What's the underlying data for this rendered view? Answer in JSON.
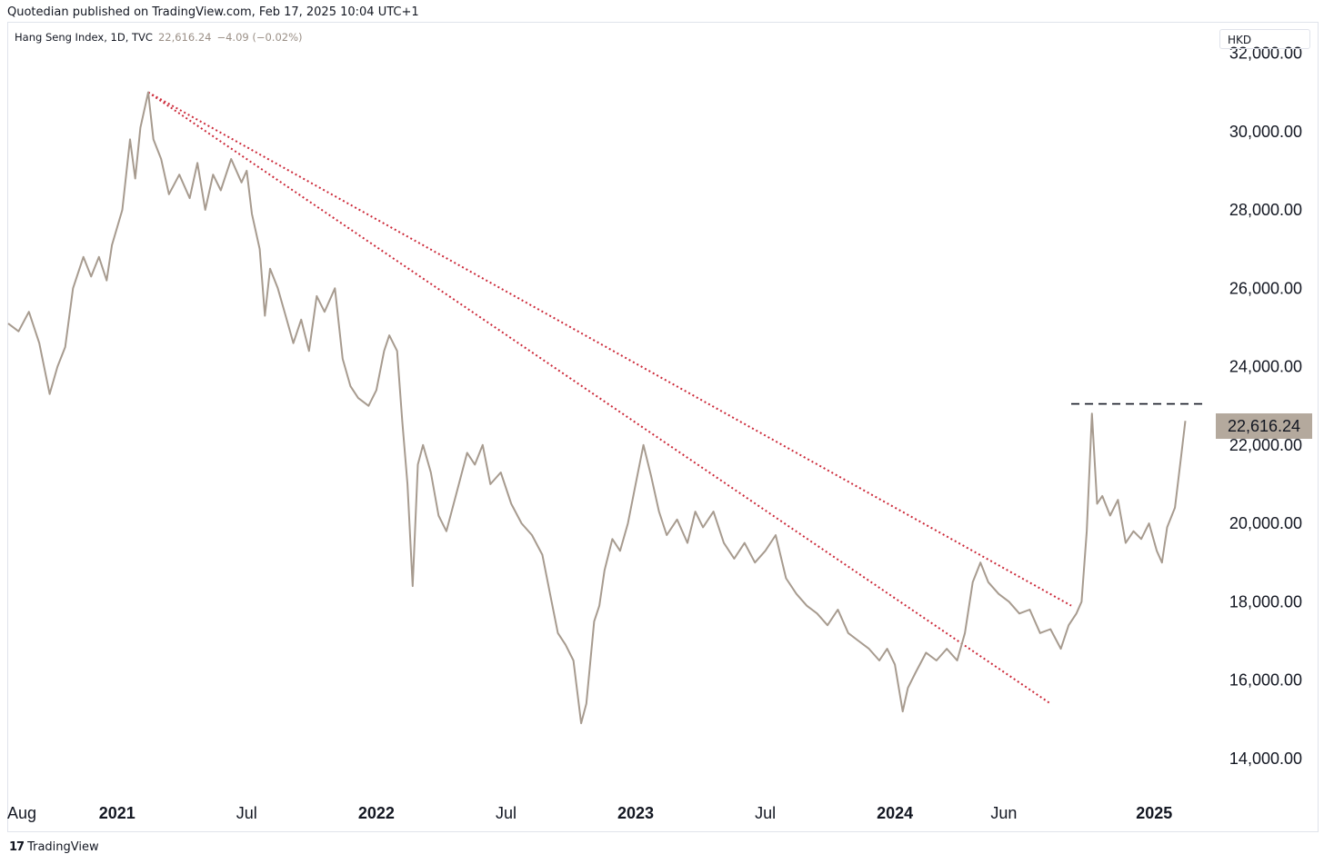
{
  "header": {
    "publisher_line": "Quotedian published on TradingView.com, Feb 17, 2025 10:04 UTC+1"
  },
  "legend": {
    "symbol": "Hang Seng Index, 1D, TVC",
    "last": "22,616.24",
    "change": "−4.09 (−0.02%)"
  },
  "currency": "HKD",
  "price_label": "22,616.24",
  "footer": {
    "brand": "TradingView",
    "logo_glyph": "17"
  },
  "colors": {
    "series": "#a79b8f",
    "trendline": "#cc2a3a",
    "resistance": "#131722",
    "price_label_bg": "#b4a99d"
  },
  "chart_data": {
    "type": "line",
    "title": "Hang Seng Index, 1D, TVC",
    "ylim": [
      13000,
      32800
    ],
    "y_ticks": [
      {
        "value": 32000,
        "label": "32,000.00"
      },
      {
        "value": 30000,
        "label": "30,000.00"
      },
      {
        "value": 28000,
        "label": "28,000.00"
      },
      {
        "value": 26000,
        "label": "26,000.00"
      },
      {
        "value": 24000,
        "label": "24,000.00"
      },
      {
        "value": 22000,
        "label": "22,000.00"
      },
      {
        "value": 20000,
        "label": "20,000.00"
      },
      {
        "value": 18000,
        "label": "18,000.00"
      },
      {
        "value": 16000,
        "label": "16,000.00"
      },
      {
        "value": 14000,
        "label": "14,000.00"
      }
    ],
    "xlim": [
      2020.58,
      2025.22
    ],
    "x_ticks": [
      {
        "t": 2020.58,
        "label": "Aug",
        "bold": false
      },
      {
        "t": 2021.0,
        "label": "2021",
        "bold": true
      },
      {
        "t": 2021.5,
        "label": "Jul",
        "bold": false
      },
      {
        "t": 2022.0,
        "label": "2022",
        "bold": true
      },
      {
        "t": 2022.5,
        "label": "Jul",
        "bold": false
      },
      {
        "t": 2023.0,
        "label": "2023",
        "bold": true
      },
      {
        "t": 2023.5,
        "label": "Jul",
        "bold": false
      },
      {
        "t": 2024.0,
        "label": "2024",
        "bold": true
      },
      {
        "t": 2024.42,
        "label": "Jun",
        "bold": false
      },
      {
        "t": 2025.0,
        "label": "2025",
        "bold": true
      }
    ],
    "series": [
      {
        "name": "Hang Seng Index",
        "points": [
          [
            2020.58,
            25100
          ],
          [
            2020.62,
            24900
          ],
          [
            2020.66,
            25400
          ],
          [
            2020.7,
            24600
          ],
          [
            2020.74,
            23300
          ],
          [
            2020.77,
            24000
          ],
          [
            2020.8,
            24500
          ],
          [
            2020.83,
            26000
          ],
          [
            2020.87,
            26800
          ],
          [
            2020.9,
            26300
          ],
          [
            2020.93,
            26800
          ],
          [
            2020.96,
            26200
          ],
          [
            2020.98,
            27100
          ],
          [
            2021.02,
            28000
          ],
          [
            2021.05,
            29800
          ],
          [
            2021.07,
            28800
          ],
          [
            2021.09,
            30100
          ],
          [
            2021.12,
            31000
          ],
          [
            2021.14,
            29800
          ],
          [
            2021.17,
            29300
          ],
          [
            2021.2,
            28400
          ],
          [
            2021.24,
            28900
          ],
          [
            2021.28,
            28300
          ],
          [
            2021.31,
            29200
          ],
          [
            2021.34,
            28000
          ],
          [
            2021.37,
            28900
          ],
          [
            2021.4,
            28500
          ],
          [
            2021.44,
            29300
          ],
          [
            2021.48,
            28700
          ],
          [
            2021.5,
            29000
          ],
          [
            2021.52,
            27900
          ],
          [
            2021.55,
            27000
          ],
          [
            2021.57,
            25300
          ],
          [
            2021.59,
            26500
          ],
          [
            2021.62,
            26000
          ],
          [
            2021.65,
            25300
          ],
          [
            2021.68,
            24600
          ],
          [
            2021.71,
            25200
          ],
          [
            2021.74,
            24400
          ],
          [
            2021.77,
            25800
          ],
          [
            2021.8,
            25400
          ],
          [
            2021.84,
            26000
          ],
          [
            2021.87,
            24200
          ],
          [
            2021.9,
            23500
          ],
          [
            2021.93,
            23200
          ],
          [
            2021.97,
            23000
          ],
          [
            2022.0,
            23400
          ],
          [
            2022.03,
            24400
          ],
          [
            2022.05,
            24800
          ],
          [
            2022.08,
            24400
          ],
          [
            2022.1,
            22600
          ],
          [
            2022.12,
            21000
          ],
          [
            2022.14,
            18400
          ],
          [
            2022.16,
            21500
          ],
          [
            2022.18,
            22000
          ],
          [
            2022.21,
            21300
          ],
          [
            2022.24,
            20200
          ],
          [
            2022.27,
            19800
          ],
          [
            2022.31,
            20800
          ],
          [
            2022.35,
            21800
          ],
          [
            2022.38,
            21500
          ],
          [
            2022.41,
            22000
          ],
          [
            2022.44,
            21000
          ],
          [
            2022.48,
            21300
          ],
          [
            2022.52,
            20500
          ],
          [
            2022.56,
            20000
          ],
          [
            2022.6,
            19700
          ],
          [
            2022.64,
            19200
          ],
          [
            2022.67,
            18200
          ],
          [
            2022.7,
            17200
          ],
          [
            2022.73,
            16900
          ],
          [
            2022.76,
            16500
          ],
          [
            2022.79,
            14900
          ],
          [
            2022.81,
            15400
          ],
          [
            2022.84,
            17500
          ],
          [
            2022.86,
            17900
          ],
          [
            2022.88,
            18800
          ],
          [
            2022.91,
            19600
          ],
          [
            2022.94,
            19300
          ],
          [
            2022.97,
            20000
          ],
          [
            2023.0,
            21000
          ],
          [
            2023.03,
            22000
          ],
          [
            2023.06,
            21200
          ],
          [
            2023.09,
            20300
          ],
          [
            2023.12,
            19700
          ],
          [
            2023.16,
            20100
          ],
          [
            2023.2,
            19500
          ],
          [
            2023.23,
            20300
          ],
          [
            2023.26,
            19900
          ],
          [
            2023.3,
            20300
          ],
          [
            2023.34,
            19500
          ],
          [
            2023.38,
            19100
          ],
          [
            2023.42,
            19500
          ],
          [
            2023.46,
            19000
          ],
          [
            2023.5,
            19300
          ],
          [
            2023.54,
            19700
          ],
          [
            2023.58,
            18600
          ],
          [
            2023.62,
            18200
          ],
          [
            2023.66,
            17900
          ],
          [
            2023.7,
            17700
          ],
          [
            2023.74,
            17400
          ],
          [
            2023.78,
            17800
          ],
          [
            2023.82,
            17200
          ],
          [
            2023.86,
            17000
          ],
          [
            2023.9,
            16800
          ],
          [
            2023.94,
            16500
          ],
          [
            2023.97,
            16800
          ],
          [
            2024.0,
            16400
          ],
          [
            2024.03,
            15200
          ],
          [
            2024.05,
            15800
          ],
          [
            2024.08,
            16200
          ],
          [
            2024.12,
            16700
          ],
          [
            2024.16,
            16500
          ],
          [
            2024.2,
            16800
          ],
          [
            2024.24,
            16500
          ],
          [
            2024.27,
            17200
          ],
          [
            2024.3,
            18500
          ],
          [
            2024.33,
            19000
          ],
          [
            2024.36,
            18500
          ],
          [
            2024.4,
            18200
          ],
          [
            2024.44,
            18000
          ],
          [
            2024.48,
            17700
          ],
          [
            2024.52,
            17800
          ],
          [
            2024.56,
            17200
          ],
          [
            2024.6,
            17300
          ],
          [
            2024.64,
            16800
          ],
          [
            2024.67,
            17400
          ],
          [
            2024.7,
            17700
          ],
          [
            2024.72,
            18000
          ],
          [
            2024.74,
            19800
          ],
          [
            2024.76,
            22800
          ],
          [
            2024.78,
            20500
          ],
          [
            2024.8,
            20700
          ],
          [
            2024.83,
            20200
          ],
          [
            2024.86,
            20600
          ],
          [
            2024.89,
            19500
          ],
          [
            2024.92,
            19800
          ],
          [
            2024.95,
            19600
          ],
          [
            2024.98,
            20000
          ],
          [
            2025.01,
            19300
          ],
          [
            2025.03,
            19000
          ],
          [
            2025.05,
            19900
          ],
          [
            2025.08,
            20400
          ],
          [
            2025.1,
            21500
          ],
          [
            2025.12,
            22616
          ]
        ]
      }
    ],
    "annotations": [
      {
        "type": "dotted-trendline",
        "from": [
          2021.12,
          31000
        ],
        "to": [
          2024.6,
          15400
        ]
      },
      {
        "type": "dotted-trendline",
        "from": [
          2021.12,
          31000
        ],
        "to": [
          2024.68,
          17900
        ]
      },
      {
        "type": "dashed-resistance",
        "from": [
          2024.68,
          23050
        ],
        "to": [
          2025.19,
          23050
        ]
      }
    ],
    "last_value": 22616.24
  }
}
